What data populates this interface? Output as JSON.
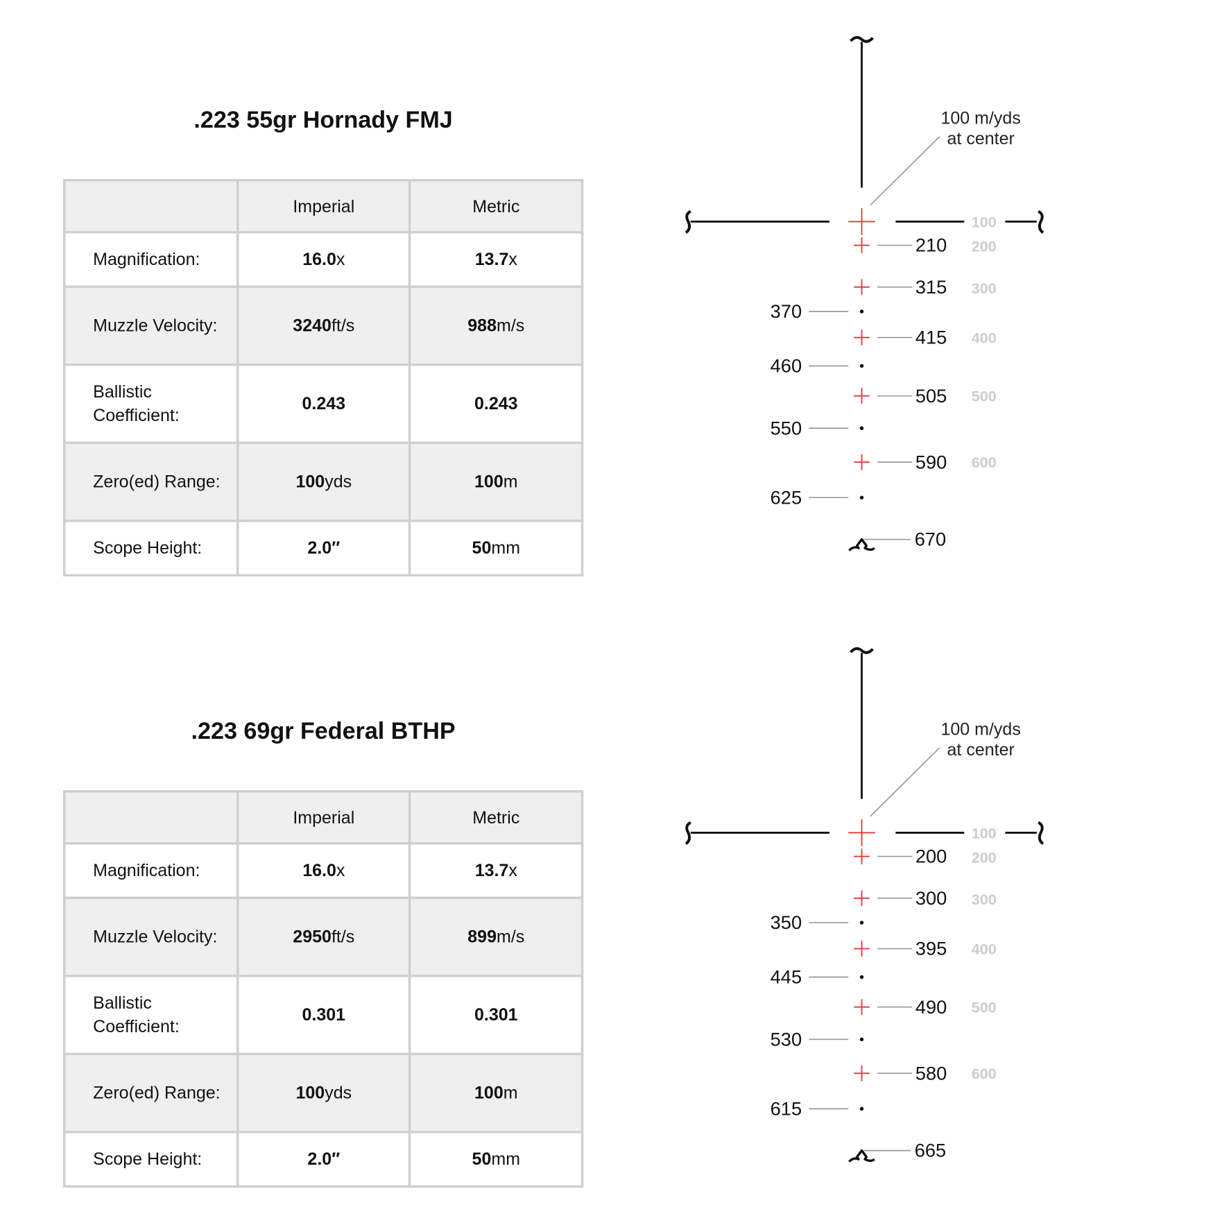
{
  "loads": [
    {
      "title": ".223 55gr Hornady FMJ",
      "table": {
        "headers": [
          "",
          "Imperial",
          "Metric"
        ],
        "rows": [
          {
            "label": "Magnification:",
            "imperial": {
              "num": "16.0",
              "unit": "x"
            },
            "metric": {
              "num": "13.7",
              "unit": "x"
            }
          },
          {
            "label": "Muzzle Velocity:",
            "imperial": {
              "num": "3240",
              "unit": "ft/s"
            },
            "metric": {
              "num": "988",
              "unit": "m/s"
            }
          },
          {
            "label": "Ballistic Coefficient:",
            "imperial": {
              "num": "0.243",
              "unit": ""
            },
            "metric": {
              "num": "0.243",
              "unit": ""
            }
          },
          {
            "label": "Zero(ed) Range:",
            "imperial": {
              "num": "100",
              "unit": "yds"
            },
            "metric": {
              "num": "100",
              "unit": "m"
            }
          },
          {
            "label": "Scope Height:",
            "imperial": {
              "num": "2.0″",
              "unit": ""
            },
            "metric": {
              "num": "50",
              "unit": "mm"
            }
          }
        ]
      },
      "reticle": {
        "callout": [
          "100 m/yds",
          "at center"
        ],
        "reference_labels": [
          "100",
          "200",
          "300",
          "400",
          "500",
          "600"
        ],
        "holds": [
          {
            "type": "cross",
            "range": "210"
          },
          {
            "type": "cross",
            "range": "315"
          },
          {
            "type": "dot",
            "range": "370"
          },
          {
            "type": "cross",
            "range": "415"
          },
          {
            "type": "dot",
            "range": "460"
          },
          {
            "type": "cross",
            "range": "505"
          },
          {
            "type": "dot",
            "range": "550"
          },
          {
            "type": "cross",
            "range": "590"
          },
          {
            "type": "dot",
            "range": "625"
          },
          {
            "type": "post-symbol",
            "range": "670"
          }
        ]
      }
    },
    {
      "title": ".223 69gr Federal BTHP",
      "table": {
        "headers": [
          "",
          "Imperial",
          "Metric"
        ],
        "rows": [
          {
            "label": "Magnification:",
            "imperial": {
              "num": "16.0",
              "unit": "x"
            },
            "metric": {
              "num": "13.7",
              "unit": "x"
            }
          },
          {
            "label": "Muzzle Velocity:",
            "imperial": {
              "num": "2950",
              "unit": "ft/s"
            },
            "metric": {
              "num": "899",
              "unit": "m/s"
            }
          },
          {
            "label": "Ballistic Coefficient:",
            "imperial": {
              "num": "0.301",
              "unit": ""
            },
            "metric": {
              "num": "0.301",
              "unit": ""
            }
          },
          {
            "label": "Zero(ed) Range:",
            "imperial": {
              "num": "100",
              "unit": "yds"
            },
            "metric": {
              "num": "100",
              "unit": "m"
            }
          },
          {
            "label": "Scope Height:",
            "imperial": {
              "num": "2.0″",
              "unit": ""
            },
            "metric": {
              "num": "50",
              "unit": "mm"
            }
          }
        ]
      },
      "reticle": {
        "callout": [
          "100 m/yds",
          "at center"
        ],
        "reference_labels": [
          "100",
          "200",
          "300",
          "400",
          "500",
          "600"
        ],
        "holds": [
          {
            "type": "cross",
            "range": "200"
          },
          {
            "type": "cross",
            "range": "300"
          },
          {
            "type": "dot",
            "range": "350"
          },
          {
            "type": "cross",
            "range": "395"
          },
          {
            "type": "dot",
            "range": "445"
          },
          {
            "type": "cross",
            "range": "490"
          },
          {
            "type": "dot",
            "range": "530"
          },
          {
            "type": "cross",
            "range": "580"
          },
          {
            "type": "dot",
            "range": "615"
          },
          {
            "type": "post-symbol",
            "range": "665"
          }
        ]
      }
    }
  ],
  "colors": {
    "hold_cross": "#e03a3a",
    "reticle": "#111111",
    "leader": "#999999",
    "reference_label": "#cccccc",
    "table_border": "#cfcfcf",
    "table_shade": "#efefef"
  }
}
